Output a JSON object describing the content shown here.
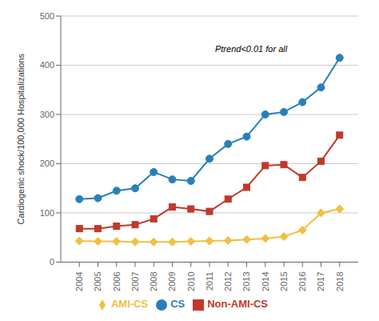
{
  "chart_data": {
    "type": "line",
    "y_label": "Cardiogenic shock/100,000 Hospitalizations",
    "x": [
      2004,
      2005,
      2006,
      2007,
      2008,
      2009,
      2010,
      2011,
      2012,
      2013,
      2014,
      2015,
      2016,
      2017,
      2018
    ],
    "xlim": [
      2003,
      2019
    ],
    "xticks": [
      2004,
      2005,
      2006,
      2007,
      2008,
      2009,
      2010,
      2011,
      2012,
      2013,
      2014,
      2015,
      2016,
      2017,
      2018
    ],
    "ylim": [
      0,
      500
    ],
    "yticks": [
      0,
      100,
      200,
      300,
      400,
      500
    ],
    "grid": true,
    "legend": "bottom",
    "series": [
      {
        "name": "CS",
        "color": "#2980b9",
        "marker": "circle",
        "values": [
          128,
          130,
          145,
          150,
          183,
          168,
          165,
          210,
          240,
          255,
          300,
          305,
          325,
          355,
          415
        ]
      },
      {
        "name": "AMI-CS",
        "color": "#f0c040",
        "marker": "diamond",
        "values": [
          43,
          42,
          42,
          41,
          41,
          41,
          42,
          43,
          44,
          46,
          48,
          52,
          65,
          100,
          108
        ]
      },
      {
        "name": "Non-AMI-CS",
        "color": "#c0392b",
        "marker": "square",
        "values": [
          68,
          68,
          73,
          76,
          88,
          112,
          108,
          103,
          128,
          152,
          196,
          198,
          172,
          205,
          258
        ]
      }
    ],
    "annotations": [
      {
        "text": "Ptrend<0.01 for all",
        "x": 2011.3,
        "y": 427
      }
    ]
  }
}
